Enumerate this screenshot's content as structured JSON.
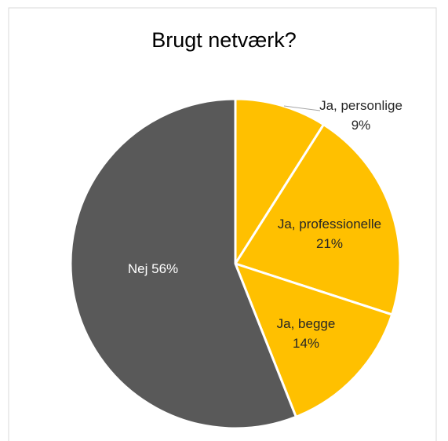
{
  "chart_data": {
    "type": "pie",
    "title": "Brugt netværk?",
    "categories": [
      "Ja, personlige",
      "Ja, professionelle",
      "Ja, begge",
      "Nej"
    ],
    "values": [
      9,
      21,
      14,
      56
    ],
    "value_labels": [
      "9%",
      "21%",
      "14%",
      "56%"
    ],
    "colors": [
      "#ffc000",
      "#ffc000",
      "#ffc000",
      "#595959"
    ]
  }
}
